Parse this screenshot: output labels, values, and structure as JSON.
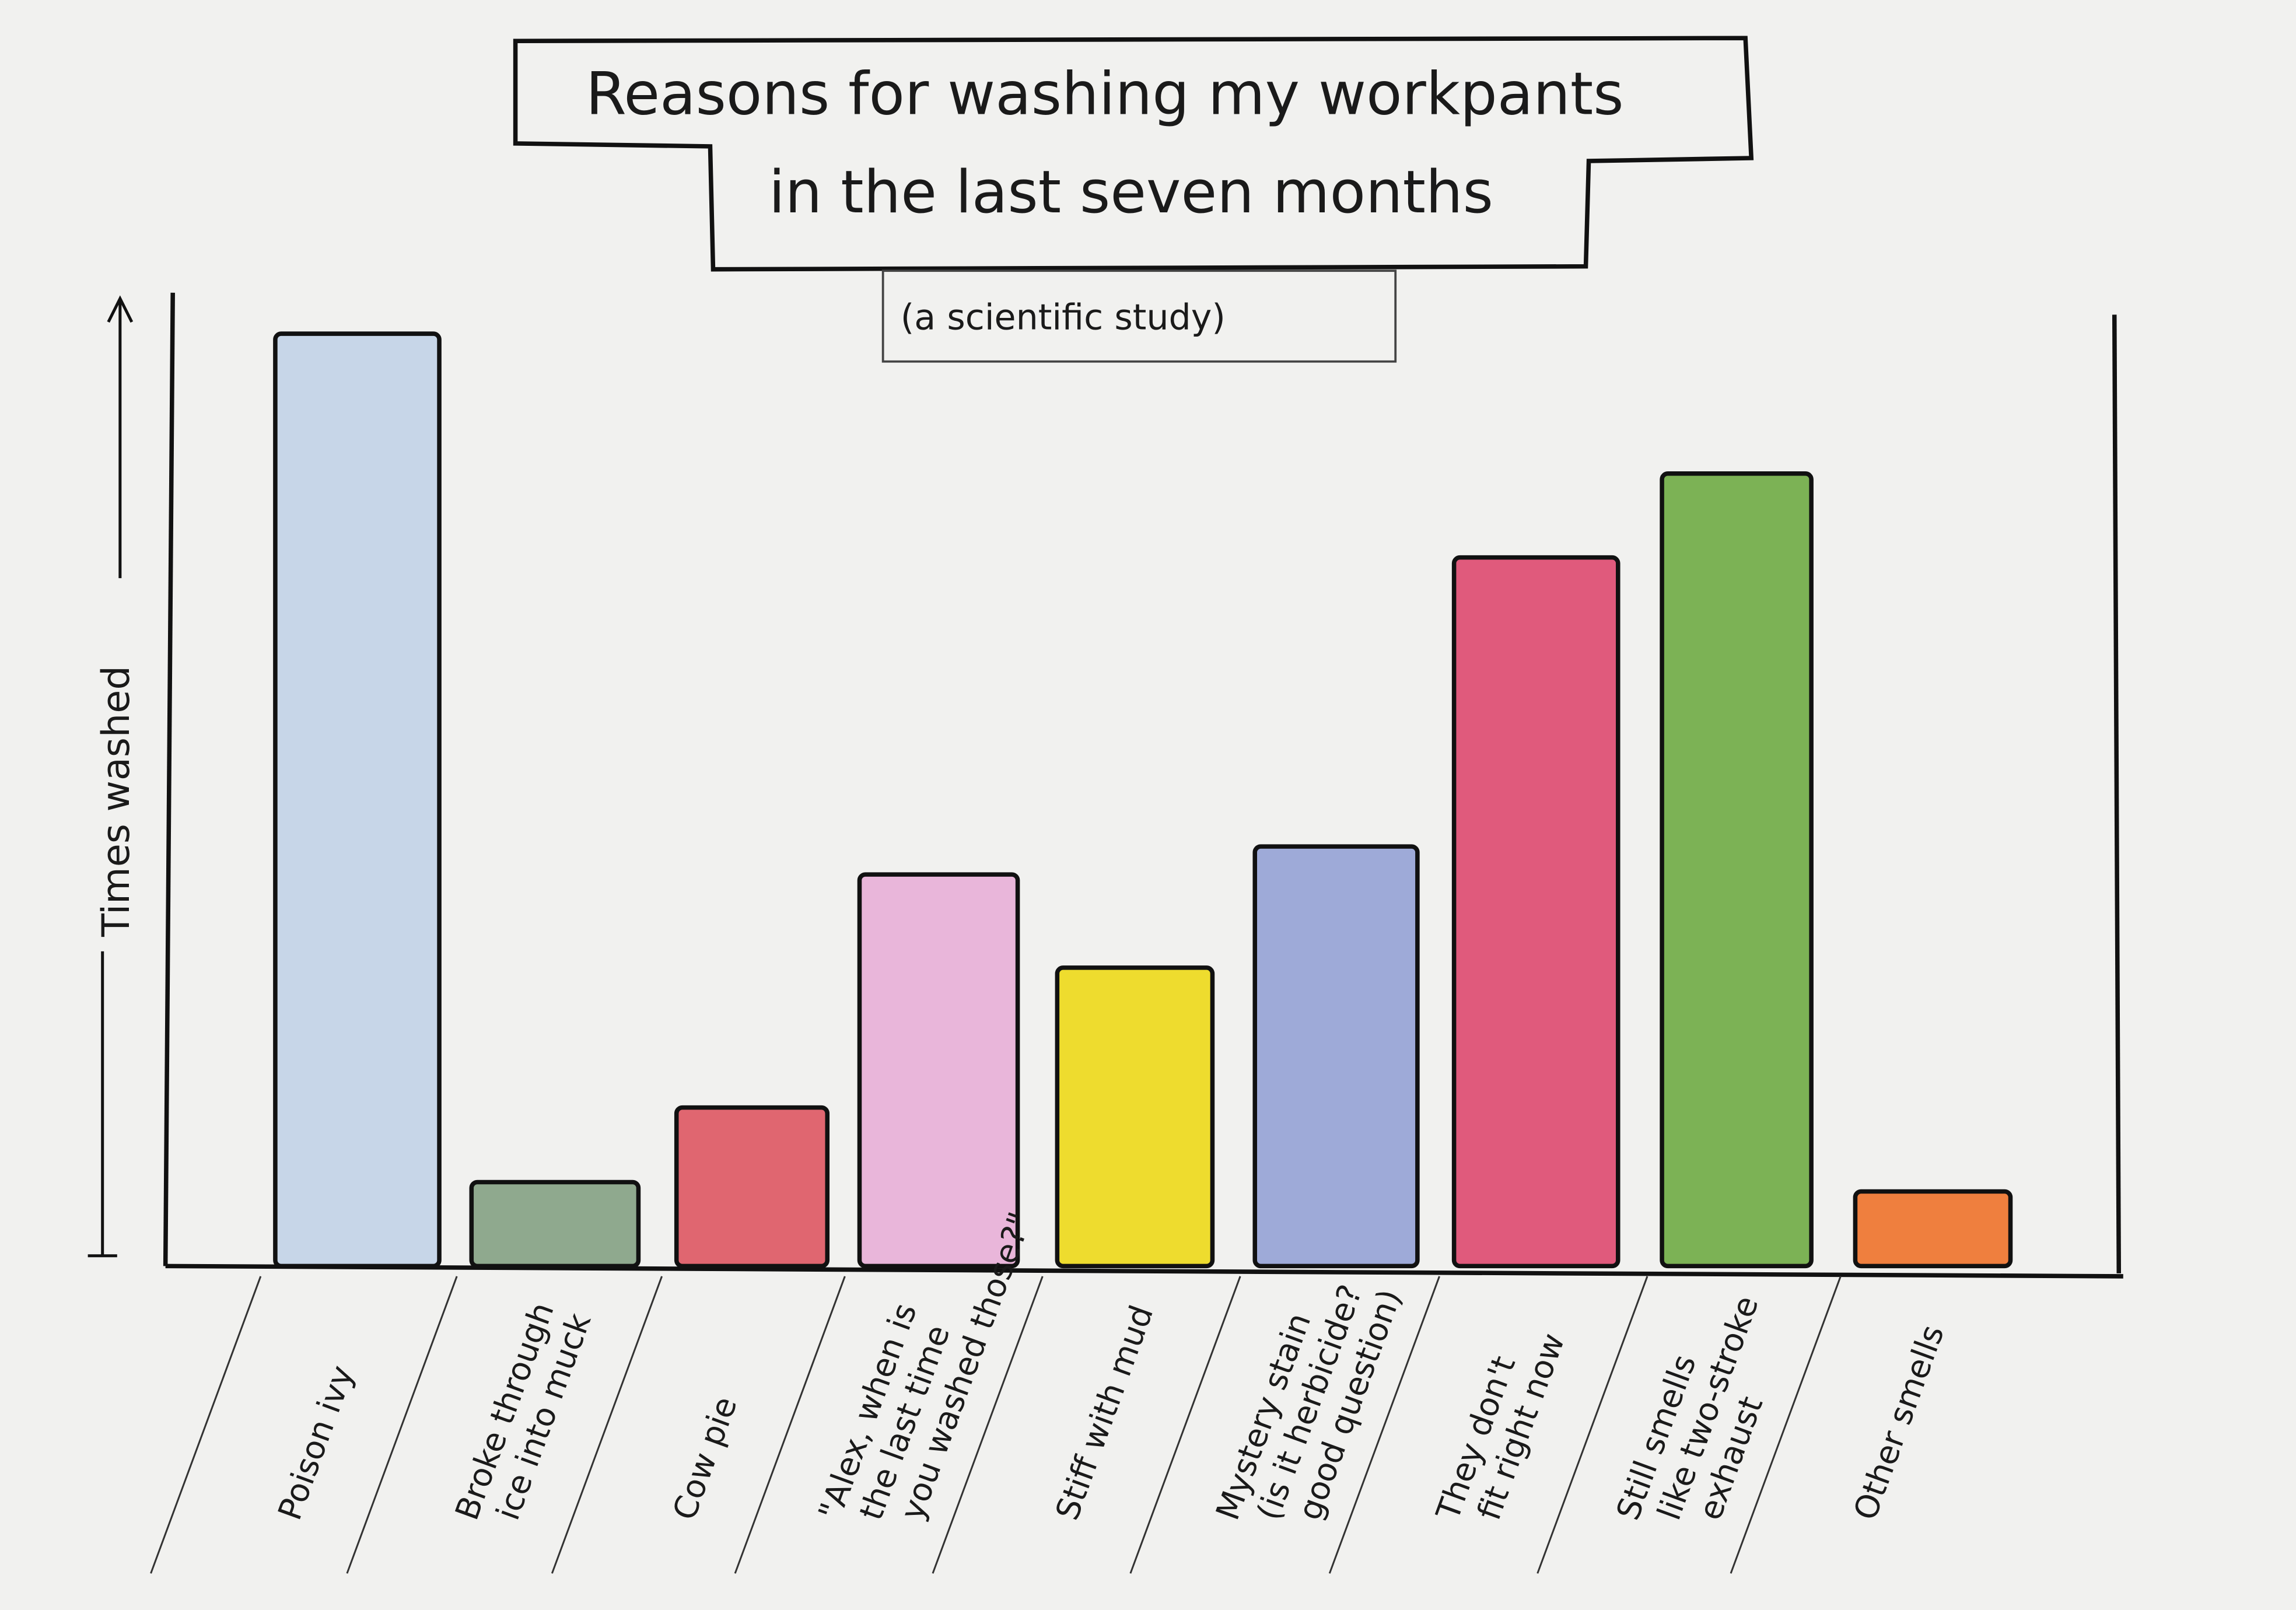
{
  "chart_data": {
    "type": "bar",
    "title": [
      "Reasons for washing my workpants",
      "in the last seven months"
    ],
    "subtitle": "(a scientific study)",
    "ylabel": "Times washed",
    "xlabel": "",
    "y_units": "relative (hand-drawn, no scale; tallest bar = 100)",
    "ylim": [
      0,
      100
    ],
    "grid": false,
    "categories": [
      [
        "Poison ivy"
      ],
      [
        "Broke through",
        "ice into muck"
      ],
      [
        "Cow pie"
      ],
      [
        "\"Alex, when is",
        "the last time",
        "you washed those?\""
      ],
      [
        "Stiff with mud"
      ],
      [
        "Mystery stain",
        "(is it herbicide?",
        "good question)"
      ],
      [
        "They don't",
        "fit right now"
      ],
      [
        "Still smells",
        "like two-stroke",
        "exhaust"
      ],
      [
        "Other smells"
      ]
    ],
    "values": [
      100,
      9,
      17,
      42,
      32,
      45,
      76,
      85,
      8
    ],
    "colors": [
      "#c7d6e8",
      "#8fa98e",
      "#e06670",
      "#e9b6da",
      "#eedc2e",
      "#9eaad8",
      "#e05a7c",
      "#7cb255",
      "#ef7f3e"
    ]
  }
}
